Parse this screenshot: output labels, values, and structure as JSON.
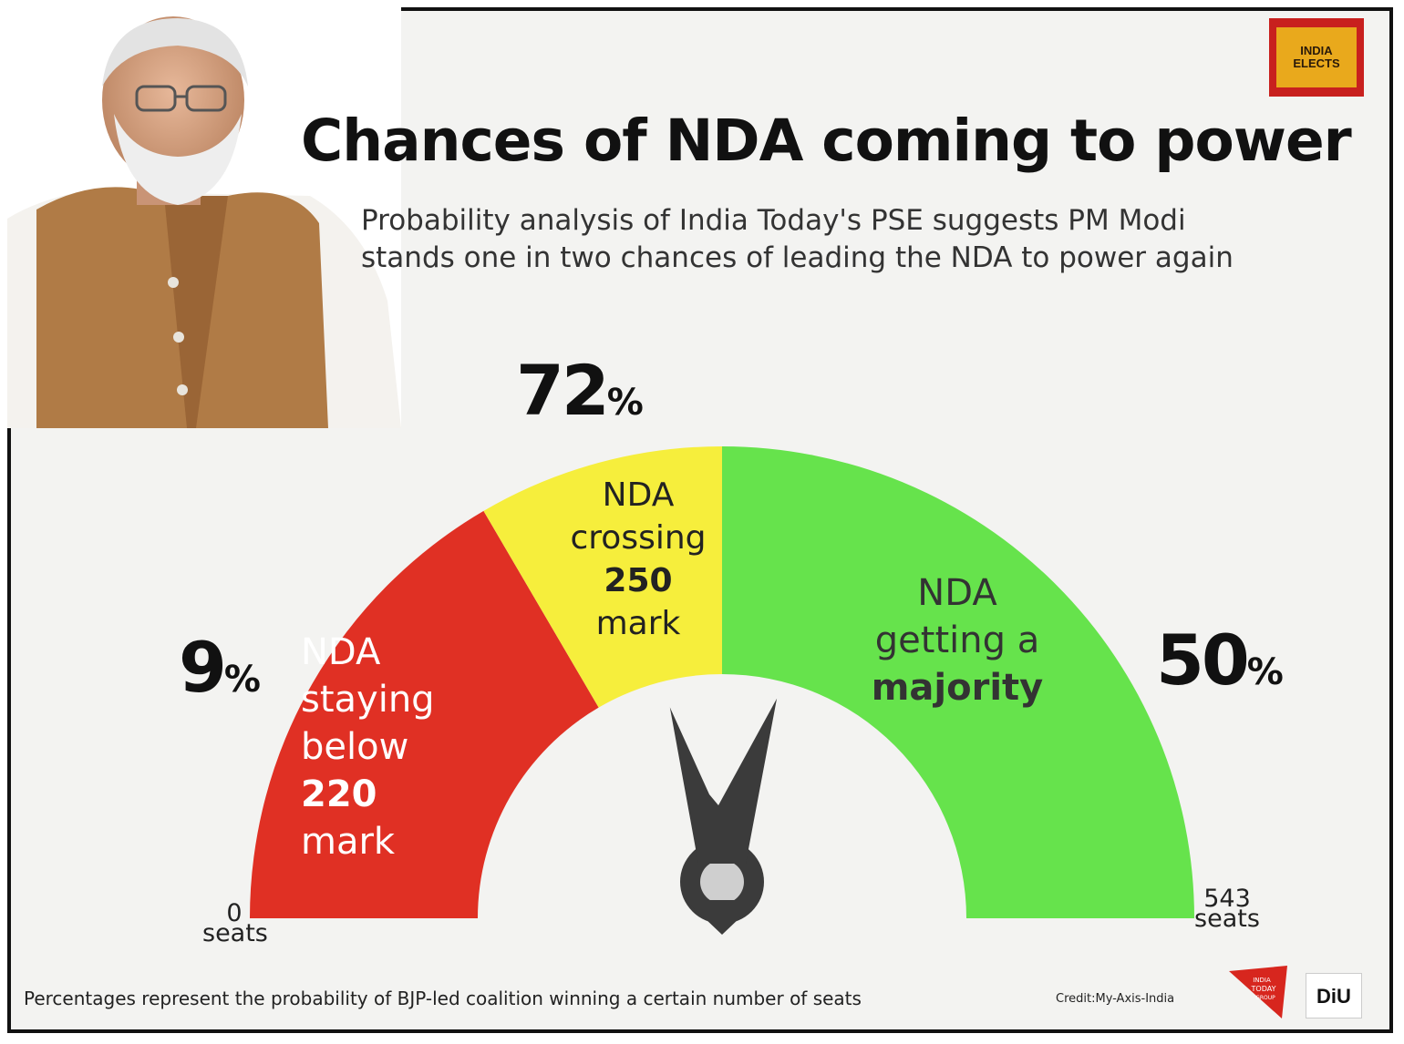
{
  "title": "Chances of NDA coming to power",
  "subtitle_line1": "Probability analysis of India Today's PSE suggests PM Modi",
  "subtitle_line2": "stands one in two chances of leading the NDA to power again",
  "logo_text_line1": "INDIA",
  "logo_text_line2": "ELECTS",
  "chart_data": {
    "type": "gauge",
    "scale_min": 0,
    "scale_max": 543,
    "scale_min_label_num": "0",
    "scale_max_label_num": "543",
    "scale_unit": "seats",
    "segments": [
      {
        "label_lines": [
          "NDA",
          "staying",
          "below",
          "220",
          "mark"
        ],
        "bold_line": 3,
        "from_seats": 0,
        "to_seats": 180,
        "probability": "9",
        "pct_symbol": "%",
        "color": "#e03024"
      },
      {
        "label_lines": [
          "NDA",
          "crossing",
          "250",
          "mark"
        ],
        "bold_line": 2,
        "from_seats": 180,
        "to_seats": 271.5,
        "probability": "72",
        "pct_symbol": "%",
        "color": "#f6ee3c"
      },
      {
        "label_lines": [
          "NDA",
          "getting a",
          "majority"
        ],
        "bold_line": 2,
        "from_seats": 271.5,
        "to_seats": 543,
        "probability": "50",
        "pct_symbol": "%",
        "color": "#66e34c"
      }
    ],
    "needle_seats": 230
  },
  "footnote": "Percentages represent the probability of BJP-led coalition winning a certain number of seats",
  "credit": "Credit:My-Axis-India",
  "itg_logo_lines": [
    "INDIA",
    "TODAY",
    "GROUP"
  ],
  "diu_logo": "DiU"
}
